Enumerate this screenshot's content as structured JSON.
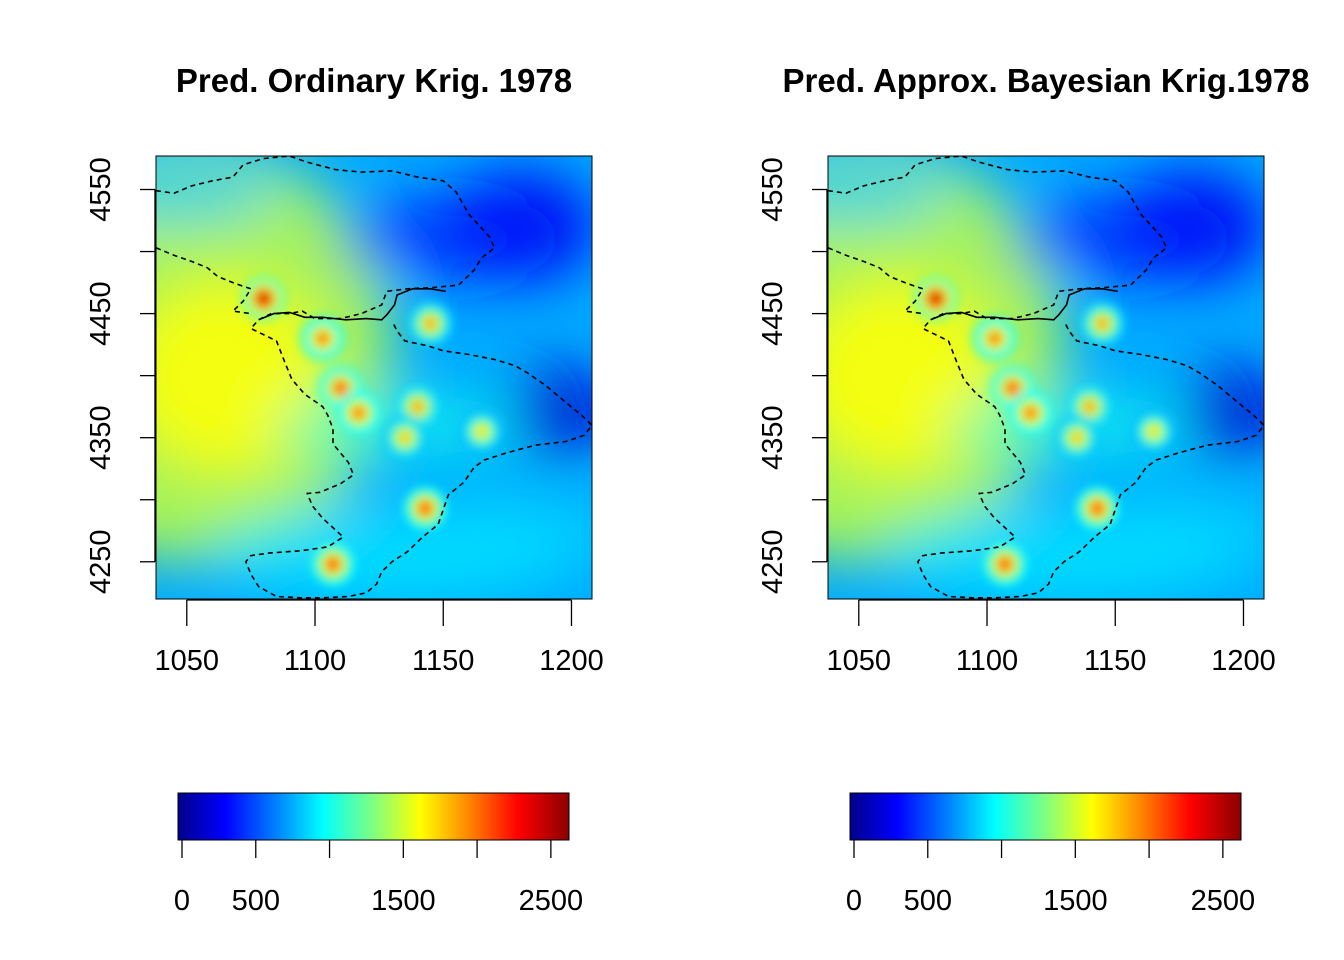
{
  "chart_data": [
    {
      "type": "heatmap",
      "title": "Pred. Ordinary Krig. 1978",
      "xlim": [
        1038,
        1208
      ],
      "ylim": [
        4220,
        4577
      ],
      "x_ticks": [
        "1050",
        "1100",
        "1150",
        "1200"
      ],
      "y_ticks": [
        "4250",
        "4350",
        "4450",
        "4550"
      ],
      "colorbar": {
        "range": [
          0,
          2650
        ],
        "tick_values": [
          0,
          500,
          1000,
          1500,
          2000,
          2500
        ],
        "tick_labels": [
          "0",
          "500",
          "1500",
          "2500"
        ]
      },
      "hotspots": [
        {
          "x": 1080,
          "y": 4462,
          "value": 2600
        },
        {
          "x": 1103,
          "y": 4430,
          "value": 2200
        },
        {
          "x": 1110,
          "y": 4390,
          "value": 2300
        },
        {
          "x": 1117,
          "y": 4370,
          "value": 2200
        },
        {
          "x": 1140,
          "y": 4375,
          "value": 2000
        },
        {
          "x": 1165,
          "y": 4355,
          "value": 1800
        },
        {
          "x": 1135,
          "y": 4350,
          "value": 1900
        },
        {
          "x": 1143,
          "y": 4293,
          "value": 2300
        },
        {
          "x": 1107,
          "y": 4248,
          "value": 2300
        },
        {
          "x": 1145,
          "y": 4442,
          "value": 2000
        }
      ]
    },
    {
      "type": "heatmap",
      "title": "Pred. Approx. Bayesian Krig.1978",
      "xlim": [
        1038,
        1208
      ],
      "ylim": [
        4220,
        4577
      ],
      "x_ticks": [
        "1050",
        "1100",
        "1150",
        "1200"
      ],
      "y_ticks": [
        "4250",
        "4350",
        "4450",
        "4550"
      ],
      "colorbar": {
        "range": [
          0,
          2650
        ],
        "tick_values": [
          0,
          500,
          1000,
          1500,
          2000,
          2500
        ],
        "tick_labels": [
          "0",
          "500",
          "1500",
          "2500"
        ]
      },
      "hotspots": [
        {
          "x": 1080,
          "y": 4462,
          "value": 2600
        },
        {
          "x": 1103,
          "y": 4430,
          "value": 2200
        },
        {
          "x": 1110,
          "y": 4390,
          "value": 2300
        },
        {
          "x": 1117,
          "y": 4370,
          "value": 2200
        },
        {
          "x": 1140,
          "y": 4375,
          "value": 2000
        },
        {
          "x": 1165,
          "y": 4355,
          "value": 1800
        },
        {
          "x": 1135,
          "y": 4350,
          "value": 1900
        },
        {
          "x": 1143,
          "y": 4293,
          "value": 2300
        },
        {
          "x": 1107,
          "y": 4248,
          "value": 2300
        },
        {
          "x": 1145,
          "y": 4442,
          "value": 2000
        }
      ]
    }
  ],
  "colors": {
    "scale": [
      "#00008b",
      "#0000ff",
      "#0080ff",
      "#00ffff",
      "#80ff80",
      "#ffff00",
      "#ff8000",
      "#ff0000",
      "#8b0000"
    ],
    "boundary": "#000000",
    "frame": "#000000"
  }
}
